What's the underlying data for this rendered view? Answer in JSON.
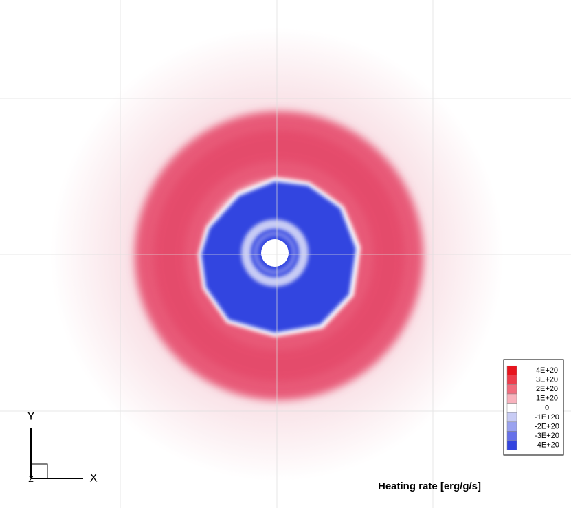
{
  "chart_data": {
    "type": "contour",
    "colorbar_title": "Heating rate [erg/g/s]",
    "colorbar_ticks": [
      {
        "value": 4e+20,
        "label": "4E+20"
      },
      {
        "value": 3e+20,
        "label": "3E+20"
      },
      {
        "value": 2e+20,
        "label": "2E+20"
      },
      {
        "value": 1e+20,
        "label": "1E+20"
      },
      0,
      {
        "value": -1e+20,
        "label": "-1E+20"
      },
      {
        "value": -2e+20,
        "label": "-2E+20"
      },
      {
        "value": -3e+20,
        "label": "-3E+20"
      },
      {
        "value": -4e+20,
        "label": "-4E+20"
      }
    ],
    "colorbar_colors": [
      "#e8141e",
      "#ee3c4c",
      "#f16c7e",
      "#f8b2bd",
      "#ffffff",
      "#c8ccf5",
      "#9aa2f0",
      "#6670ea",
      "#3344e0"
    ],
    "axis_labels": {
      "x": "X",
      "y": "Y",
      "z": "Z"
    }
  }
}
